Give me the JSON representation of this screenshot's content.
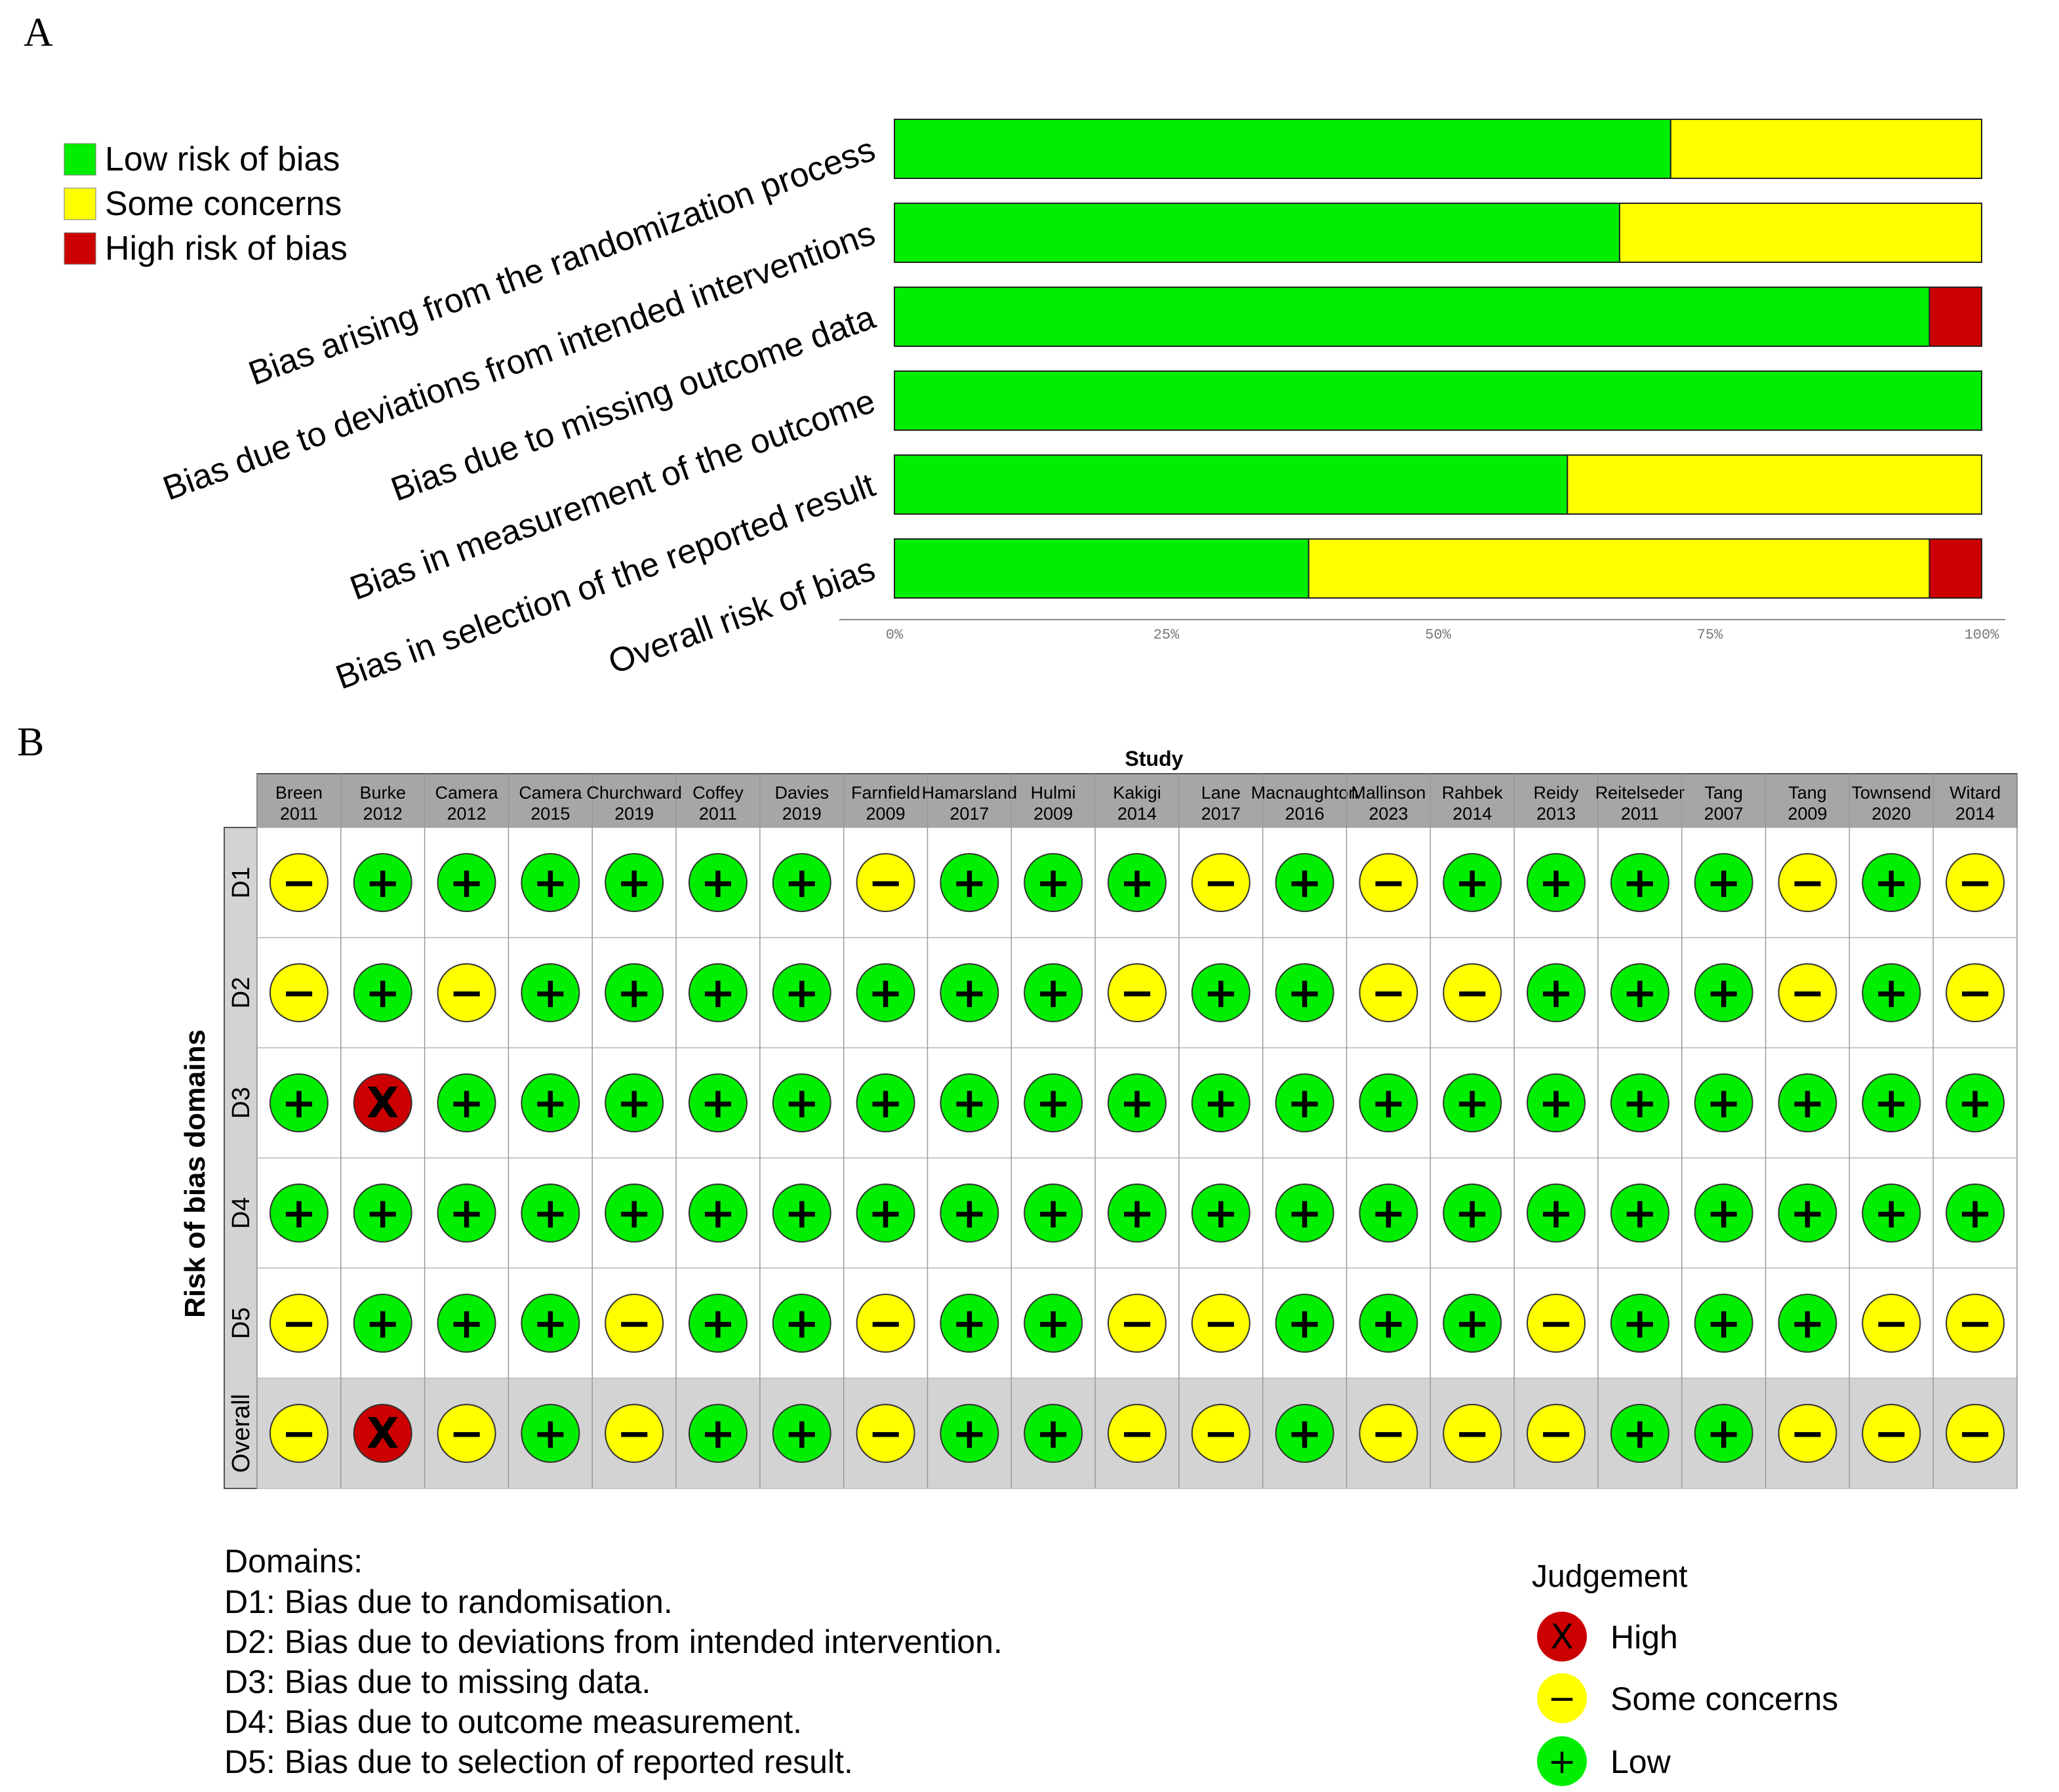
{
  "panel_a": {
    "letter": "A"
  },
  "panel_b": {
    "letter": "B"
  },
  "colors": {
    "low": "#00ee00",
    "some": "#ffff00",
    "high": "#cc0000",
    "grid_header": "#a6a6a6",
    "overall_bg": "#d3d3d3"
  },
  "chart_data": [
    {
      "type": "bar",
      "orientation": "horizontal",
      "stacked": true,
      "legend": {
        "placement": "top-left",
        "entries": [
          {
            "key": "low",
            "label": "Low risk of bias"
          },
          {
            "key": "some",
            "label": "Some concerns"
          },
          {
            "key": "high",
            "label": "High risk of bias"
          }
        ]
      },
      "categories": [
        "Bias arising from the randomization process",
        "Bias due to deviations from intended interventions",
        "Bias due to missing outcome data",
        "Bias in measurement of the outcome",
        "Bias in selection of the reported result",
        "Overall risk of bias"
      ],
      "series": [
        {
          "name": "Low risk of bias",
          "key": "low",
          "values": [
            71.4,
            66.7,
            95.2,
            100,
            61.9,
            38.1
          ]
        },
        {
          "name": "Some concerns",
          "key": "some",
          "values": [
            28.6,
            33.3,
            0,
            0,
            38.1,
            57.1
          ]
        },
        {
          "name": "High risk of bias",
          "key": "high",
          "values": [
            0,
            0,
            4.8,
            0,
            0,
            4.8
          ]
        }
      ],
      "xlim": [
        0,
        100
      ],
      "x_ticks": [
        "0%",
        "25%",
        "50%",
        "75%",
        "100%"
      ]
    },
    {
      "type": "table",
      "title": "Study",
      "ylabel": "Risk of bias domains",
      "studies": [
        {
          "name": "Breen",
          "year": "2011"
        },
        {
          "name": "Burke",
          "year": "2012"
        },
        {
          "name": "Camera",
          "year": "2012"
        },
        {
          "name": "Camera",
          "year": "2015"
        },
        {
          "name": "Churchward",
          "year": "2019"
        },
        {
          "name": "Coffey",
          "year": "2011"
        },
        {
          "name": "Davies",
          "year": "2019"
        },
        {
          "name": "Farnfield",
          "year": "2009"
        },
        {
          "name": "Hamarsland",
          "year": "2017"
        },
        {
          "name": "Hulmi",
          "year": "2009"
        },
        {
          "name": "Kakigi",
          "year": "2014"
        },
        {
          "name": "Lane",
          "year": "2017"
        },
        {
          "name": "Macnaughton",
          "year": "2016"
        },
        {
          "name": "Mallinson",
          "year": "2023"
        },
        {
          "name": "Rahbek",
          "year": "2014"
        },
        {
          "name": "Reidy",
          "year": "2013"
        },
        {
          "name": "Reitelseder",
          "year": "2011"
        },
        {
          "name": "Tang",
          "year": "2007"
        },
        {
          "name": "Tang",
          "year": "2009"
        },
        {
          "name": "Townsend",
          "year": "2020"
        },
        {
          "name": "Witard",
          "year": "2014"
        }
      ],
      "rows": [
        {
          "label": "D1",
          "judgements": [
            "S",
            "L",
            "L",
            "L",
            "L",
            "L",
            "L",
            "S",
            "L",
            "L",
            "L",
            "S",
            "L",
            "S",
            "L",
            "L",
            "L",
            "L",
            "S",
            "L",
            "S"
          ]
        },
        {
          "label": "D2",
          "judgements": [
            "S",
            "L",
            "S",
            "L",
            "L",
            "L",
            "L",
            "L",
            "L",
            "L",
            "S",
            "L",
            "L",
            "S",
            "S",
            "L",
            "L",
            "L",
            "S",
            "L",
            "S"
          ]
        },
        {
          "label": "D3",
          "judgements": [
            "L",
            "H",
            "L",
            "L",
            "L",
            "L",
            "L",
            "L",
            "L",
            "L",
            "L",
            "L",
            "L",
            "L",
            "L",
            "L",
            "L",
            "L",
            "L",
            "L",
            "L"
          ]
        },
        {
          "label": "D4",
          "judgements": [
            "L",
            "L",
            "L",
            "L",
            "L",
            "L",
            "L",
            "L",
            "L",
            "L",
            "L",
            "L",
            "L",
            "L",
            "L",
            "L",
            "L",
            "L",
            "L",
            "L",
            "L"
          ]
        },
        {
          "label": "D5",
          "judgements": [
            "S",
            "L",
            "L",
            "L",
            "S",
            "L",
            "L",
            "S",
            "L",
            "L",
            "S",
            "S",
            "L",
            "L",
            "L",
            "S",
            "L",
            "L",
            "L",
            "S",
            "S"
          ]
        },
        {
          "label": "Overall",
          "judgements": [
            "S",
            "H",
            "S",
            "L",
            "S",
            "L",
            "L",
            "S",
            "L",
            "L",
            "S",
            "S",
            "L",
            "S",
            "S",
            "S",
            "L",
            "L",
            "S",
            "S",
            "S"
          ]
        }
      ],
      "symbols": {
        "L": "+",
        "S": "−",
        "H": "X"
      },
      "domains": {
        "title": "Domains:",
        "items": [
          "D1: Bias due to randomisation.",
          "D2: Bias due to deviations from intended intervention.",
          "D3: Bias due to missing data.",
          "D4: Bias due to outcome measurement.",
          "D5: Bias due to selection of reported result."
        ]
      },
      "judgement_legend": {
        "title": "Judgement",
        "entries": [
          {
            "key": "H",
            "label": "High"
          },
          {
            "key": "S",
            "label": "Some concerns"
          },
          {
            "key": "L",
            "label": "Low"
          }
        ]
      }
    }
  ]
}
